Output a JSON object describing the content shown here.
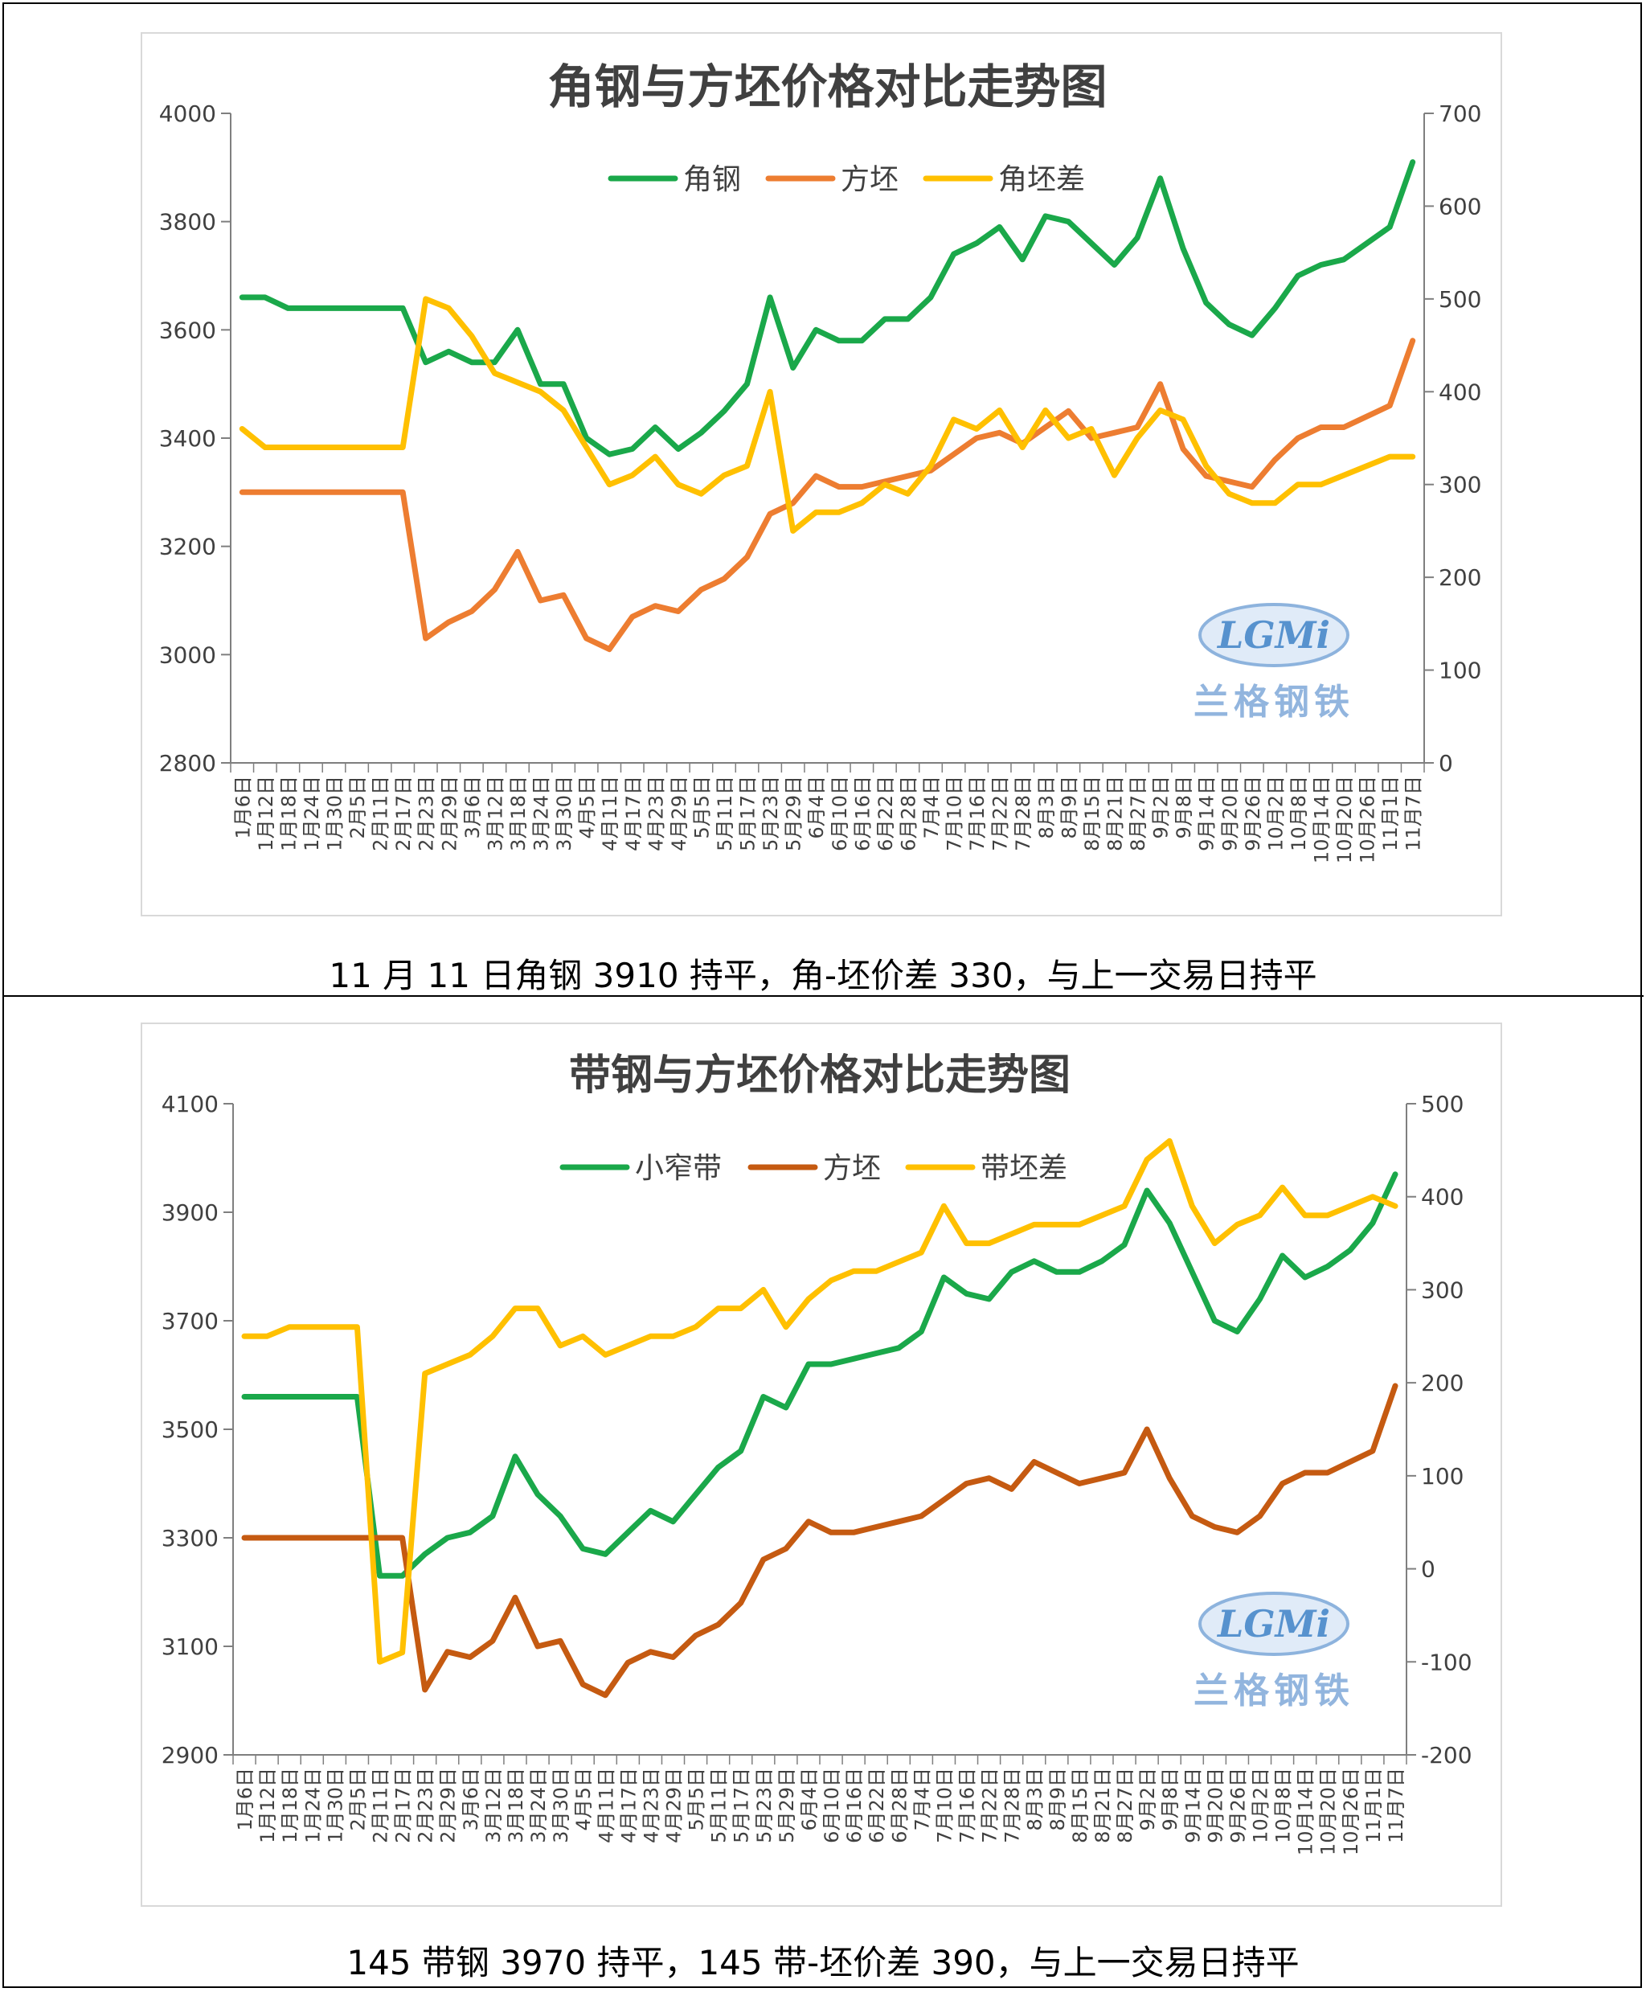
{
  "captions": {
    "top": "11 月 11 日角钢 3910  持平，角-坯价差 330，与上一交易日持平",
    "bottom": "145 带钢 3970  持平，145 带-坯价差 390，与上一交易日持平"
  },
  "logo": {
    "mark": "LGMi",
    "name": "兰格钢铁"
  },
  "x_labels": [
    "1月6日",
    "1月12日",
    "1月18日",
    "1月24日",
    "1月30日",
    "2月5日",
    "2月11日",
    "2月17日",
    "2月23日",
    "2月29日",
    "3月6日",
    "3月12日",
    "3月18日",
    "3月24日",
    "3月30日",
    "4月5日",
    "4月11日",
    "4月17日",
    "4月23日",
    "4月29日",
    "5月5日",
    "5月11日",
    "5月17日",
    "5月23日",
    "5月29日",
    "6月4日",
    "6月10日",
    "6月16日",
    "6月22日",
    "6月28日",
    "7月4日",
    "7月10日",
    "7月16日",
    "7月22日",
    "7月28日",
    "8月3日",
    "8月9日",
    "8月15日",
    "8月21日",
    "8月27日",
    "9月2日",
    "9月8日",
    "9月14日",
    "9月20日",
    "9月26日",
    "10月2日",
    "10月8日",
    "10月14日",
    "10月20日",
    "10月26日",
    "11月1日",
    "11月7日"
  ],
  "colors": {
    "green": "#1aa84a",
    "orange_top": "#ed7d31",
    "orange_bottom": "#c55a11",
    "yellow": "#ffc000",
    "axis": "#7f7f7f",
    "title": "#404040",
    "tick": "#404040"
  },
  "chart_data": [
    {
      "type": "line",
      "title": "角钢与方坯价格对比走势图",
      "x": [
        0,
        1,
        2,
        3,
        4,
        5,
        6,
        7,
        8,
        9,
        10,
        11,
        12,
        13,
        14,
        15,
        16,
        17,
        18,
        19,
        20,
        21,
        22,
        23,
        24,
        25,
        26,
        27,
        28,
        29,
        30,
        31,
        32,
        33,
        34,
        35,
        36,
        37,
        38,
        39,
        40,
        41,
        42,
        43,
        44,
        45,
        46,
        47,
        48,
        49,
        50,
        51
      ],
      "ylim": [
        2800,
        4000
      ],
      "yticks": [
        2800,
        3000,
        3200,
        3400,
        3600,
        3800,
        4000
      ],
      "y2lim": [
        0,
        700
      ],
      "y2ticks": [
        0,
        100,
        200,
        300,
        400,
        500,
        600,
        700
      ],
      "legend_position": "top",
      "series": [
        {
          "name": "角钢",
          "axis": "left",
          "color": "green",
          "values": [
            3660,
            3660,
            3640,
            3640,
            3640,
            3640,
            3640,
            3640,
            3540,
            3560,
            3540,
            3540,
            3600,
            3500,
            3500,
            3400,
            3370,
            3380,
            3420,
            3380,
            3410,
            3450,
            3500,
            3660,
            3530,
            3600,
            3580,
            3580,
            3620,
            3620,
            3660,
            3740,
            3760,
            3790,
            3730,
            3810,
            3800,
            3760,
            3720,
            3770,
            3880,
            3750,
            3650,
            3610,
            3590,
            3640,
            3700,
            3720,
            3730,
            3760,
            3790,
            3910
          ]
        },
        {
          "name": "方坯",
          "axis": "left",
          "color": "orange_top",
          "values": [
            3300,
            3300,
            3300,
            3300,
            3300,
            3300,
            3300,
            3300,
            3030,
            3060,
            3080,
            3120,
            3190,
            3100,
            3110,
            3030,
            3010,
            3070,
            3090,
            3080,
            3120,
            3140,
            3180,
            3260,
            3280,
            3330,
            3310,
            3310,
            3320,
            3330,
            3340,
            3370,
            3400,
            3410,
            3390,
            3420,
            3450,
            3400,
            3410,
            3420,
            3500,
            3380,
            3330,
            3320,
            3310,
            3360,
            3400,
            3420,
            3420,
            3440,
            3460,
            3580
          ]
        },
        {
          "name": "角坯差",
          "axis": "right",
          "color": "yellow",
          "values": [
            360,
            340,
            340,
            340,
            340,
            340,
            340,
            340,
            500,
            490,
            460,
            420,
            410,
            400,
            380,
            340,
            300,
            310,
            330,
            300,
            290,
            310,
            320,
            400,
            250,
            270,
            270,
            280,
            300,
            290,
            320,
            370,
            360,
            380,
            340,
            380,
            350,
            360,
            310,
            350,
            380,
            370,
            320,
            290,
            280,
            280,
            300,
            300,
            310,
            320,
            330,
            330
          ]
        }
      ]
    },
    {
      "type": "line",
      "title": "带钢与方坯价格对比走势图",
      "x": [
        0,
        1,
        2,
        3,
        4,
        5,
        6,
        7,
        8,
        9,
        10,
        11,
        12,
        13,
        14,
        15,
        16,
        17,
        18,
        19,
        20,
        21,
        22,
        23,
        24,
        25,
        26,
        27,
        28,
        29,
        30,
        31,
        32,
        33,
        34,
        35,
        36,
        37,
        38,
        39,
        40,
        41,
        42,
        43,
        44,
        45,
        46,
        47,
        48,
        49,
        50,
        51
      ],
      "ylim": [
        2900,
        4100
      ],
      "yticks": [
        2900,
        3100,
        3300,
        3500,
        3700,
        3900,
        4100
      ],
      "y2lim": [
        -200,
        500
      ],
      "y2ticks": [
        -200,
        -100,
        0,
        100,
        200,
        300,
        400,
        500
      ],
      "legend_position": "top",
      "series": [
        {
          "name": "小窄带",
          "axis": "left",
          "color": "green",
          "values": [
            3560,
            3560,
            3560,
            3560,
            3560,
            3560,
            3230,
            3230,
            3270,
            3300,
            3310,
            3340,
            3450,
            3380,
            3340,
            3280,
            3270,
            3310,
            3350,
            3330,
            3380,
            3430,
            3460,
            3560,
            3540,
            3620,
            3620,
            3630,
            3640,
            3650,
            3680,
            3780,
            3750,
            3740,
            3790,
            3810,
            3790,
            3790,
            3810,
            3840,
            3940,
            3880,
            3790,
            3700,
            3680,
            3740,
            3820,
            3780,
            3800,
            3830,
            3880,
            3970
          ]
        },
        {
          "name": "方坯",
          "axis": "left",
          "color": "orange_bottom",
          "values": [
            3300,
            3300,
            3300,
            3300,
            3300,
            3300,
            3300,
            3300,
            3020,
            3090,
            3080,
            3110,
            3190,
            3100,
            3110,
            3030,
            3010,
            3070,
            3090,
            3080,
            3120,
            3140,
            3180,
            3260,
            3280,
            3330,
            3310,
            3310,
            3320,
            3330,
            3340,
            3370,
            3400,
            3410,
            3390,
            3440,
            3420,
            3400,
            3410,
            3420,
            3500,
            3410,
            3340,
            3320,
            3310,
            3340,
            3400,
            3420,
            3420,
            3440,
            3460,
            3580
          ]
        },
        {
          "name": "带坯差",
          "axis": "right",
          "color": "yellow",
          "values": [
            250,
            250,
            260,
            260,
            260,
            260,
            -100,
            -90,
            210,
            220,
            230,
            250,
            280,
            280,
            240,
            250,
            230,
            240,
            250,
            250,
            260,
            280,
            280,
            300,
            260,
            290,
            310,
            320,
            320,
            330,
            340,
            390,
            350,
            350,
            360,
            370,
            370,
            370,
            380,
            390,
            440,
            460,
            390,
            350,
            370,
            380,
            410,
            380,
            380,
            390,
            400,
            390
          ]
        }
      ]
    }
  ]
}
